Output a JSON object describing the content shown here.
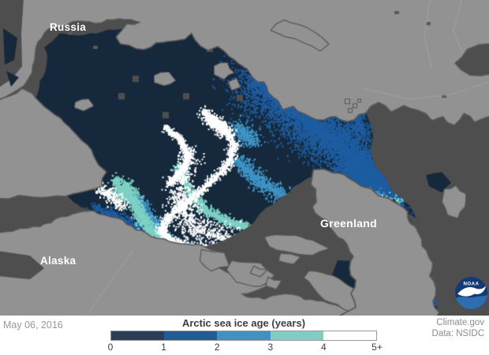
{
  "map": {
    "region_labels": {
      "russia": "Russia",
      "alaska": "Alaska",
      "greenland": "Greenland"
    },
    "noaa_logo": {
      "text": "NOAA"
    },
    "palette": {
      "ocean_gray": "#4e4e4e",
      "land_gray": "#929292",
      "coast_mask": "#585858",
      "country_border": "#ababab",
      "ice_age_0_1": "#16293c",
      "ice_age_1_2": "#1e5da1",
      "ice_age_2_3": "#3f94c5",
      "ice_age_3_4": "#7fd1c5",
      "ice_age_4_plus": "#ffffff"
    }
  },
  "footer": {
    "date": "May 06, 2016",
    "legend": {
      "title": "Arctic sea ice age (years)",
      "segment_colors": [
        "#2b3e55",
        "#1f5c99",
        "#3e92c3",
        "#7ecfc3",
        "#ffffff"
      ],
      "ticks": [
        "0",
        "1",
        "2",
        "3",
        "4",
        "5+"
      ]
    },
    "credits": [
      "Climate.gov",
      "Data: NSIDC"
    ]
  }
}
